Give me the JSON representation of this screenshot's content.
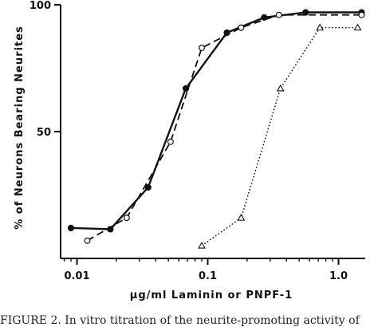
{
  "chart_data": {
    "type": "line",
    "title": "",
    "xlabel": "μg/ml Laminin or PNPF-1",
    "ylabel": "% of Neurons Bearing Neurites",
    "xscale": "log",
    "xlim": [
      0.0075,
      1.6
    ],
    "ylim": [
      0,
      100
    ],
    "x_ticks": [
      0.01,
      0.1,
      1.0
    ],
    "x_tick_labels": [
      "0.01",
      "0.1",
      "1.0"
    ],
    "y_ticks": [
      50,
      100
    ],
    "y_tick_labels": [
      "50",
      "100"
    ],
    "grid": false,
    "legend": "none",
    "series": [
      {
        "marker": "filled-circle",
        "line_style": "solid",
        "color": "#111111",
        "x": [
          0.009,
          0.018,
          0.035,
          0.068,
          0.14,
          0.27,
          0.56,
          1.5
        ],
        "y": [
          12,
          11.5,
          28,
          67,
          89,
          95,
          97,
          97
        ]
      },
      {
        "marker": "open-circle",
        "line_style": "dashed",
        "color": "#111111",
        "x": [
          0.012,
          0.024,
          0.052,
          0.09,
          0.18,
          0.35,
          1.5
        ],
        "y": [
          7,
          16,
          46,
          83,
          91,
          96,
          96
        ]
      },
      {
        "marker": "open-triangle",
        "line_style": "dotted",
        "color": "#111111",
        "x": [
          0.09,
          0.18,
          0.36,
          0.72,
          1.4
        ],
        "y": [
          5,
          16,
          67,
          91,
          91
        ]
      }
    ]
  },
  "caption": "FIGURE 2. In vitro titration of the neurite-promoting activity of"
}
